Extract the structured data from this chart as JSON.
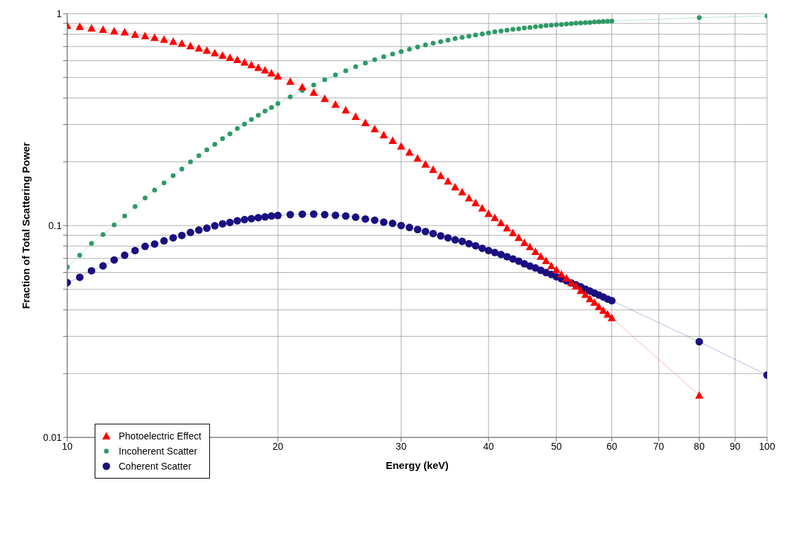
{
  "chart_data": {
    "type": "line",
    "xlabel": "Energy (keV)",
    "ylabel": "Fraction of Total Scattering Power",
    "log": "xy",
    "grid": true,
    "legend": "bottom left",
    "line_style": "solid",
    "xlim": [
      10,
      100
    ],
    "xticks": [
      10,
      20,
      30,
      40,
      50,
      60,
      70,
      80,
      90,
      100
    ],
    "ylim": [
      0.01,
      1
    ],
    "yticks": [
      0.01,
      {
        "value": 0.02,
        "label": null
      },
      {
        "value": 0.03,
        "label": null
      },
      {
        "value": 0.04,
        "label": null
      },
      {
        "value": 0.05,
        "label": null
      },
      {
        "value": 0.06,
        "label": null
      },
      {
        "value": 0.07,
        "label": null
      },
      {
        "value": 0.08,
        "label": null
      },
      {
        "value": 0.09,
        "label": null
      },
      0.1,
      {
        "value": 0.2,
        "label": null
      },
      {
        "value": 0.3,
        "label": null
      },
      {
        "value": 0.4,
        "label": null
      },
      {
        "value": 0.5,
        "label": null
      },
      {
        "value": 0.6,
        "label": null
      },
      {
        "value": 0.7,
        "label": null
      },
      {
        "value": 0.8,
        "label": null
      },
      {
        "value": 0.9,
        "label": null
      },
      1
    ],
    "x": [
      10,
      10.42,
      10.83,
      11.25,
      11.67,
      12.08,
      12.5,
      12.92,
      13.33,
      13.75,
      14.17,
      14.58,
      15,
      15.42,
      15.83,
      16.25,
      16.67,
      17.08,
      17.5,
      17.92,
      18.33,
      18.75,
      19.17,
      19.58,
      20,
      20.83,
      21.67,
      22.5,
      23.33,
      24.17,
      25,
      25.83,
      26.67,
      27.5,
      28.33,
      29.17,
      30,
      30.83,
      31.67,
      32.5,
      33.33,
      34.17,
      35,
      35.83,
      36.67,
      37.5,
      38.33,
      39.17,
      40,
      40.83,
      41.67,
      42.5,
      43.33,
      44.17,
      45,
      45.83,
      46.67,
      47.5,
      48.33,
      49.17,
      50,
      50.83,
      51.67,
      52.5,
      53.33,
      54.17,
      55,
      55.83,
      56.67,
      57.5,
      58.33,
      59.17,
      60,
      80,
      100
    ],
    "series": [
      {
        "name": "Photoelectric Effect",
        "color": "#ff0000",
        "marker": "triangle",
        "values": [
          0.879,
          0.87,
          0.855,
          0.842,
          0.829,
          0.819,
          0.798,
          0.786,
          0.772,
          0.756,
          0.74,
          0.724,
          0.704,
          0.688,
          0.671,
          0.653,
          0.636,
          0.621,
          0.607,
          0.59,
          0.574,
          0.557,
          0.542,
          0.525,
          0.508,
          0.479,
          0.451,
          0.425,
          0.398,
          0.373,
          0.351,
          0.327,
          0.306,
          0.286,
          0.268,
          0.252,
          0.237,
          0.222,
          0.208,
          0.195,
          0.184,
          0.172,
          0.162,
          0.152,
          0.144,
          0.135,
          0.128,
          0.121,
          0.114,
          0.109,
          0.103,
          0.0974,
          0.0925,
          0.0878,
          0.0831,
          0.0794,
          0.0753,
          0.0715,
          0.0683,
          0.0646,
          0.0619,
          0.0589,
          0.0566,
          0.0538,
          0.0518,
          0.0494,
          0.0473,
          0.0451,
          0.0434,
          0.0414,
          0.0398,
          0.0382,
          0.0367,
          0.0158,
          null
        ]
      },
      {
        "name": "Incoherent Scatter",
        "color": "#2e9a66",
        "marker": "circle",
        "values": [
          0.0637,
          0.0724,
          0.0824,
          0.0908,
          0.1007,
          0.111,
          0.123,
          0.135,
          0.147,
          0.159,
          0.172,
          0.185,
          0.2,
          0.214,
          0.228,
          0.242,
          0.257,
          0.271,
          0.287,
          0.301,
          0.317,
          0.332,
          0.347,
          0.361,
          0.377,
          0.405,
          0.434,
          0.461,
          0.488,
          0.514,
          0.538,
          0.562,
          0.585,
          0.607,
          0.626,
          0.646,
          0.663,
          0.68,
          0.697,
          0.712,
          0.726,
          0.738,
          0.751,
          0.763,
          0.774,
          0.784,
          0.794,
          0.803,
          0.812,
          0.822,
          0.829,
          0.836,
          0.844,
          0.849,
          0.856,
          0.862,
          0.868,
          0.873,
          0.879,
          0.883,
          0.887,
          0.89,
          0.894,
          0.898,
          0.902,
          0.904,
          0.908,
          0.91,
          0.914,
          0.916,
          0.92,
          0.922,
          0.923,
          0.958,
          0.976
        ]
      },
      {
        "name": "Coherent Scatter",
        "color": "#1a0f80",
        "marker": "circle",
        "values": [
          0.0538,
          0.057,
          0.0612,
          0.0645,
          0.0688,
          0.0724,
          0.0762,
          0.0798,
          0.0818,
          0.0847,
          0.0875,
          0.0898,
          0.0928,
          0.0952,
          0.0972,
          0.0998,
          0.1019,
          0.1035,
          0.1053,
          0.1067,
          0.1078,
          0.109,
          0.1099,
          0.1109,
          0.1116,
          0.1126,
          0.1131,
          0.1133,
          0.1126,
          0.1118,
          0.1109,
          0.1095,
          0.1074,
          0.106,
          0.1037,
          0.1024,
          0.1,
          0.0979,
          0.0958,
          0.0937,
          0.0917,
          0.0894,
          0.0875,
          0.0856,
          0.0842,
          0.0821,
          0.0803,
          0.0781,
          0.0762,
          0.0746,
          0.073,
          0.0713,
          0.0696,
          0.0679,
          0.066,
          0.0644,
          0.0631,
          0.0615,
          0.06,
          0.0588,
          0.0573,
          0.0561,
          0.0549,
          0.0536,
          0.0525,
          0.0514,
          0.0501,
          0.0491,
          0.048,
          0.047,
          0.046,
          0.045,
          0.0442,
          0.0283,
          0.0197
        ]
      }
    ]
  }
}
